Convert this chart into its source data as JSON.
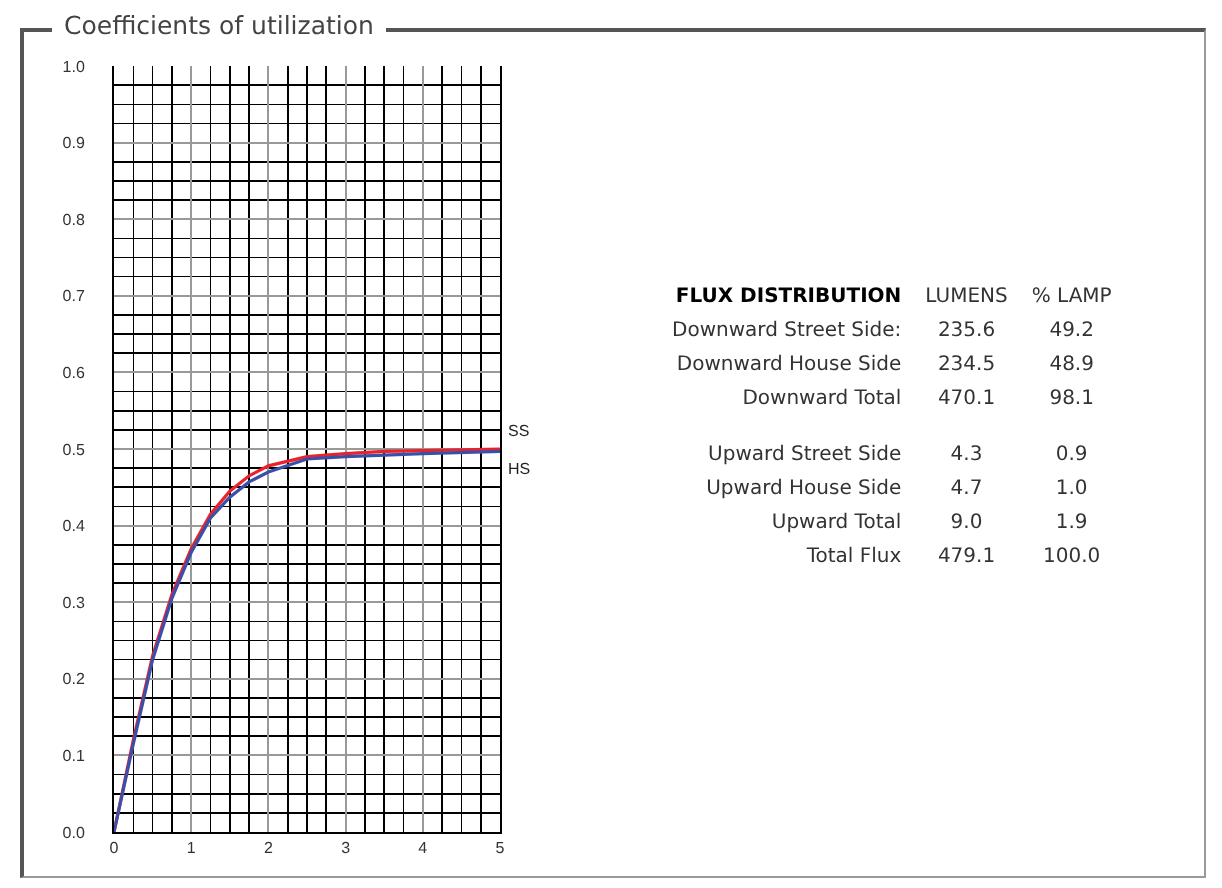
{
  "chart_data": [
    {
      "type": "line",
      "title": "Coefficients of utilization",
      "series": [
        {
          "name": "SS",
          "color": "#e8232a",
          "x": [
            0,
            0.25,
            0.5,
            0.75,
            1,
            1.25,
            1.5,
            1.75,
            2,
            2.5,
            3,
            3.5,
            4,
            5
          ],
          "values": [
            0,
            0.12,
            0.23,
            0.31,
            0.37,
            0.415,
            0.445,
            0.465,
            0.478,
            0.49,
            0.494,
            0.497,
            0.498,
            0.5
          ]
        },
        {
          "name": "HS",
          "color": "#3c4fa8",
          "x": [
            0,
            0.25,
            0.5,
            0.75,
            1,
            1.25,
            1.5,
            1.75,
            2,
            2.5,
            3,
            3.5,
            4,
            5
          ],
          "values": [
            0,
            0.115,
            0.225,
            0.305,
            0.365,
            0.41,
            0.437,
            0.457,
            0.47,
            0.487,
            0.49,
            0.492,
            0.494,
            0.497
          ]
        }
      ],
      "xlim": [
        0,
        5
      ],
      "xticks": [
        0,
        1,
        2,
        3,
        4,
        5
      ],
      "ylim": [
        0,
        1
      ],
      "yticks": [
        {
          "value": 0,
          "label": "0.0"
        },
        0.1,
        0.2,
        0.3,
        0.4,
        0.5,
        0.6,
        0.7,
        0.8,
        0.9,
        {
          "value": 1,
          "label": "1.0"
        }
      ],
      "grid": true,
      "legend": false,
      "marker": "none",
      "line_style": "solid"
    },
    {
      "type": "other",
      "title": "FLUX DISTRIBUTION",
      "annotations": [
        ":"
      ],
      "categories": [
        "Downward Street Side",
        "Downward House Side",
        "Downward Total",
        "Upward Street Side",
        "Upward House Side",
        "Upward Total",
        "Total Flux"
      ],
      "series": [
        {
          "name": "LUMENS",
          "values": [
            235.6,
            234.5,
            470.1,
            4.3,
            4.7,
            9,
            479.1
          ],
          "value_labels": [
            "235.6",
            "234.5",
            "470.1",
            "4.3",
            "4.7",
            "9.0",
            "479.1"
          ]
        },
        {
          "name": "% LAMP",
          "values": [
            49.2,
            48.9,
            98.1,
            0.9,
            1,
            1.9,
            100
          ],
          "value_labels": [
            "49.2",
            "48.9",
            "98.1",
            "0.9",
            "1.0",
            "1.9",
            "100.0"
          ]
        }
      ]
    }
  ]
}
